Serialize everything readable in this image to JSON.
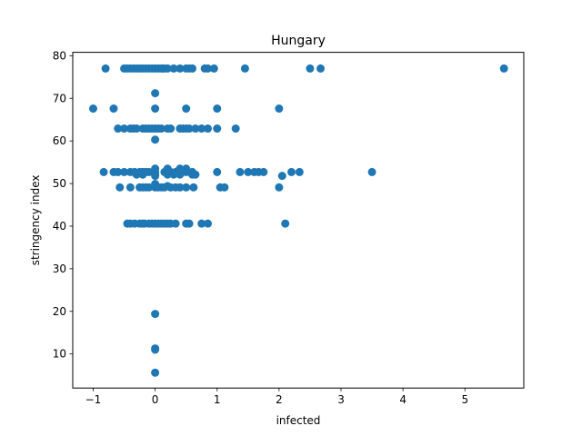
{
  "chart_data": {
    "type": "scatter",
    "title": "Hungary",
    "xlabel": "infected",
    "ylabel": "stringency index",
    "xlim": [
      -1.33,
      5.95
    ],
    "ylim": [
      2.0,
      80.8
    ],
    "xticks": [
      -1,
      0,
      1,
      2,
      3,
      4,
      5
    ],
    "yticks": [
      10,
      20,
      30,
      40,
      50,
      60,
      70,
      80
    ],
    "xtick_labels": [
      "−1",
      "0",
      "1",
      "2",
      "3",
      "4",
      "5"
    ],
    "ytick_labels": [
      "10",
      "20",
      "30",
      "40",
      "50",
      "60",
      "70",
      "80"
    ],
    "grid": false,
    "marker_color": "#1f77b4",
    "series": [
      {
        "points": [
          [
            -0.8,
            77
          ],
          [
            -0.5,
            77
          ],
          [
            -0.45,
            77
          ],
          [
            -0.4,
            77
          ],
          [
            -0.35,
            77
          ],
          [
            -0.3,
            77
          ],
          [
            -0.25,
            77
          ],
          [
            -0.2,
            77
          ],
          [
            -0.15,
            77
          ],
          [
            -0.1,
            77
          ],
          [
            -0.05,
            77
          ],
          [
            0,
            77
          ],
          [
            0.05,
            77
          ],
          [
            0.1,
            77
          ],
          [
            0.12,
            77
          ],
          [
            0.15,
            77
          ],
          [
            0.2,
            77
          ],
          [
            0.3,
            77
          ],
          [
            0.4,
            77
          ],
          [
            0.5,
            77
          ],
          [
            0.55,
            77
          ],
          [
            0.6,
            77
          ],
          [
            0.8,
            77
          ],
          [
            0.85,
            77
          ],
          [
            0.95,
            77
          ],
          [
            1.45,
            77
          ],
          [
            2.5,
            77
          ],
          [
            2.67,
            77
          ],
          [
            5.63,
            77
          ],
          [
            0,
            71.2
          ],
          [
            -1.0,
            67.6
          ],
          [
            -0.67,
            67.6
          ],
          [
            0,
            67.6
          ],
          [
            0.5,
            67.6
          ],
          [
            1.0,
            67.6
          ],
          [
            2.0,
            67.6
          ],
          [
            -0.6,
            62.9
          ],
          [
            -0.5,
            62.9
          ],
          [
            -0.4,
            62.9
          ],
          [
            -0.35,
            62.9
          ],
          [
            -0.3,
            62.9
          ],
          [
            -0.2,
            62.9
          ],
          [
            -0.15,
            62.9
          ],
          [
            -0.1,
            62.9
          ],
          [
            -0.05,
            62.9
          ],
          [
            0,
            62.9
          ],
          [
            0.05,
            62.9
          ],
          [
            0.1,
            62.9
          ],
          [
            0.2,
            62.9
          ],
          [
            0.25,
            62.9
          ],
          [
            0.4,
            62.9
          ],
          [
            0.45,
            62.9
          ],
          [
            0.5,
            62.9
          ],
          [
            0.55,
            62.9
          ],
          [
            0.65,
            62.9
          ],
          [
            0.75,
            62.9
          ],
          [
            0.85,
            62.9
          ],
          [
            1.0,
            62.9
          ],
          [
            1.3,
            62.9
          ],
          [
            0,
            60.3
          ],
          [
            -0.83,
            52.7
          ],
          [
            -0.67,
            52.7
          ],
          [
            -0.6,
            52.7
          ],
          [
            -0.5,
            52.7
          ],
          [
            -0.4,
            52.7
          ],
          [
            -0.33,
            52.7
          ],
          [
            -0.25,
            52.7
          ],
          [
            -0.2,
            52.7
          ],
          [
            -0.15,
            52.7
          ],
          [
            -0.1,
            52.7
          ],
          [
            0,
            52.7
          ],
          [
            0.15,
            52.7
          ],
          [
            0.2,
            52.7
          ],
          [
            0.25,
            52.7
          ],
          [
            0.33,
            52.7
          ],
          [
            0.4,
            52.7
          ],
          [
            0.5,
            52.7
          ],
          [
            0.6,
            52.7
          ],
          [
            1.0,
            52.7
          ],
          [
            1.37,
            52.7
          ],
          [
            1.5,
            52.7
          ],
          [
            1.6,
            52.7
          ],
          [
            1.67,
            52.7
          ],
          [
            1.75,
            52.7
          ],
          [
            2.2,
            52.7
          ],
          [
            2.33,
            52.7
          ],
          [
            3.5,
            52.7
          ],
          [
            -0.3,
            52.1
          ],
          [
            -0.2,
            52.1
          ],
          [
            0,
            52.1
          ],
          [
            0.2,
            52.1
          ],
          [
            0.3,
            52.1
          ],
          [
            0.4,
            52.1
          ],
          [
            0.6,
            52.1
          ],
          [
            0.65,
            52.1
          ],
          [
            0,
            53.5
          ],
          [
            0.2,
            53.5
          ],
          [
            0.4,
            53.5
          ],
          [
            0.5,
            53.5
          ],
          [
            0,
            51.8
          ],
          [
            2.05,
            51.8
          ],
          [
            0,
            49.9
          ],
          [
            0.2,
            49.4
          ],
          [
            -0.57,
            49.1
          ],
          [
            -0.4,
            49.1
          ],
          [
            -0.25,
            49.1
          ],
          [
            -0.2,
            49.1
          ],
          [
            -0.15,
            49.1
          ],
          [
            -0.1,
            49.1
          ],
          [
            0,
            49.1
          ],
          [
            0.05,
            49.1
          ],
          [
            0.1,
            49.1
          ],
          [
            0.15,
            49.1
          ],
          [
            0.25,
            49.1
          ],
          [
            0.33,
            49.1
          ],
          [
            0.4,
            49.1
          ],
          [
            0.5,
            49.1
          ],
          [
            0.62,
            49.1
          ],
          [
            1.05,
            49.1
          ],
          [
            1.12,
            49.1
          ],
          [
            2.0,
            49.1
          ],
          [
            -0.45,
            40.6
          ],
          [
            -0.4,
            40.6
          ],
          [
            -0.33,
            40.6
          ],
          [
            -0.25,
            40.6
          ],
          [
            -0.2,
            40.6
          ],
          [
            -0.17,
            40.6
          ],
          [
            -0.1,
            40.6
          ],
          [
            -0.05,
            40.6
          ],
          [
            0,
            40.6
          ],
          [
            0.05,
            40.6
          ],
          [
            0.1,
            40.6
          ],
          [
            0.15,
            40.6
          ],
          [
            0.2,
            40.6
          ],
          [
            0.25,
            40.6
          ],
          [
            0.33,
            40.6
          ],
          [
            0.5,
            40.6
          ],
          [
            0.55,
            40.6
          ],
          [
            0.75,
            40.6
          ],
          [
            0.85,
            40.6
          ],
          [
            2.1,
            40.6
          ],
          [
            0,
            19.4
          ],
          [
            0,
            11.3
          ],
          [
            0,
            11.0
          ],
          [
            0,
            5.6
          ]
        ]
      }
    ]
  }
}
